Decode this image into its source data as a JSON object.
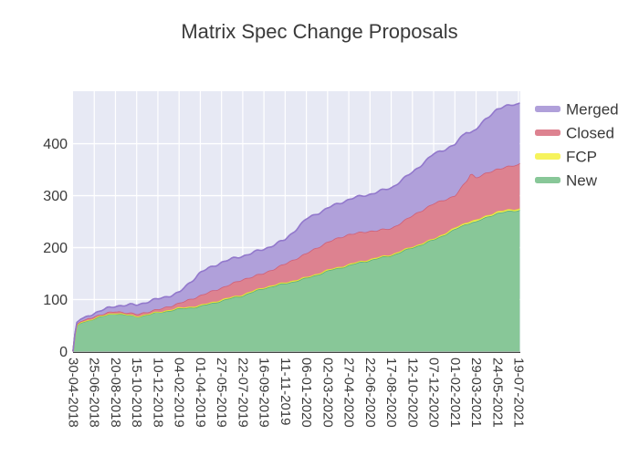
{
  "chart_data": {
    "type": "area",
    "stacked": true,
    "title": "Matrix Spec Change Proposals",
    "xlabel": "",
    "ylabel": "",
    "ylim": [
      0,
      501
    ],
    "yticks": [
      0,
      100,
      200,
      300,
      400
    ],
    "grid": true,
    "legend_position": "right-top",
    "legend_order": [
      "Merged",
      "Closed",
      "FCP",
      "New"
    ],
    "categories": [
      "30-04-2018",
      "25-06-2018",
      "20-08-2018",
      "15-10-2018",
      "10-12-2018",
      "04-02-2019",
      "01-04-2019",
      "27-05-2019",
      "22-07-2019",
      "16-09-2019",
      "11-11-2019",
      "06-01-2020",
      "02-03-2020",
      "27-04-2020",
      "22-06-2020",
      "17-08-2020",
      "12-10-2020",
      "07-12-2020",
      "01-02-2021",
      "29-03-2021",
      "24-05-2021",
      "19-07-2021"
    ],
    "series": [
      {
        "name": "New",
        "fill": "#88c798",
        "line": "#5fae76",
        "values": [
          0,
          64,
          74,
          67,
          75,
          82,
          87,
          98,
          108,
          122,
          131,
          141,
          155,
          166,
          176,
          185,
          200,
          215,
          235,
          250,
          267,
          272
        ]
      },
      {
        "name": "FCP",
        "fill": "#f6f35c",
        "line": "#e3df33",
        "values": [
          0,
          1,
          1,
          1,
          1,
          2,
          2,
          2,
          2,
          2,
          2,
          2,
          2,
          2,
          2,
          2,
          2,
          2,
          3,
          3,
          3,
          3
        ]
      },
      {
        "name": "Closed",
        "fill": "#dd8290",
        "line": "#cf5f77",
        "values": [
          0,
          3,
          3,
          4,
          5,
          9,
          19,
          23,
          29,
          27,
          36,
          46,
          54,
          58,
          54,
          50,
          60,
          68,
          62,
          82,
          82,
          85
        ]
      },
      {
        "name": "Merged",
        "fill": "#b0a0da",
        "line": "#9278cc",
        "values": [
          0,
          6,
          10,
          18,
          20,
          20,
          44,
          49,
          45,
          46,
          46,
          66,
          65,
          67,
          71,
          78,
          83,
          95,
          98,
          93,
          116,
          117
        ]
      }
    ],
    "detail_anchors": [
      {
        "t": 0.0,
        "values": [
          0,
          0,
          0,
          0
        ]
      },
      {
        "t": 0.08,
        "values": [
          30,
          0,
          1,
          1
        ]
      },
      {
        "t": 0.18,
        "values": [
          50,
          1,
          2,
          3
        ]
      },
      {
        "t": 0.35,
        "values": [
          55,
          1,
          2,
          4
        ]
      },
      {
        "t": 0.6,
        "values": [
          58,
          1,
          3,
          5
        ]
      },
      {
        "t": 18.55,
        "values": [
          246,
          3,
          80,
          95
        ]
      },
      {
        "t": 18.75,
        "values": [
          249,
          3,
          92,
          78
        ]
      },
      {
        "t": 21.09,
        "values": [
          273,
          3,
          87,
          117
        ]
      }
    ],
    "colors": {
      "plot_background": "#e7e9f4",
      "gridline": "#ffffff",
      "axis_line": "#444444",
      "text": "#3a3a3a"
    }
  }
}
